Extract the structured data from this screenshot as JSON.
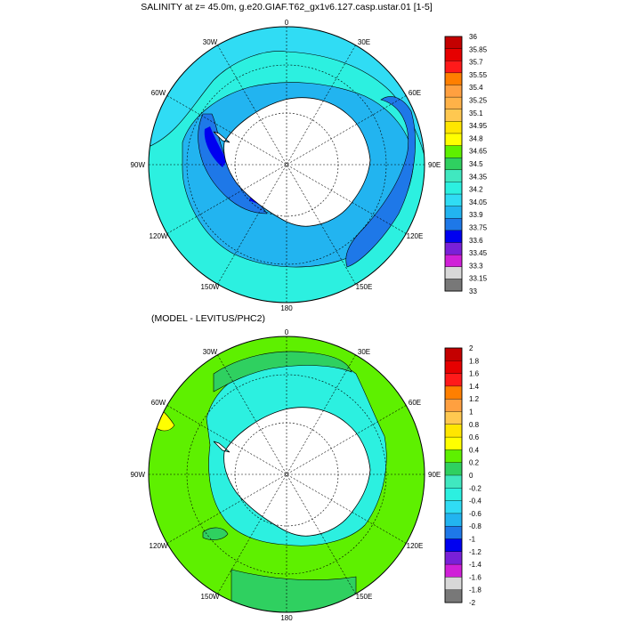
{
  "panels": [
    {
      "title": "SALINITY at z=  45.0m, g.e20.GIAF.T62_gx1v6.127.casp.ustar.01 [1-5]",
      "longitude_labels": {
        "top": "0",
        "bottom": "180",
        "left": "90W",
        "right": "90E",
        "upper_left_inner": "30W",
        "upper_right_inner": "30E",
        "upper_left_outer": "60W",
        "upper_right_outer": "60E",
        "lower_left_outer": "120W",
        "lower_right_outer": "120E",
        "lower_left_inner": "150W",
        "lower_right_inner": "150E"
      },
      "colorbar": {
        "labels": [
          "36",
          "35.85",
          "35.7",
          "35.55",
          "35.4",
          "35.25",
          "35.1",
          "34.95",
          "34.8",
          "34.65",
          "34.5",
          "34.35",
          "34.2",
          "34.05",
          "33.9",
          "33.75",
          "33.6",
          "33.45",
          "33.3",
          "33.15",
          "33"
        ],
        "colors": [
          "#c40000",
          "#e60000",
          "#ff1a1a",
          "#ff7f00",
          "#ffa040",
          "#ffb248",
          "#ffc850",
          "#ffe600",
          "#ffff00",
          "#5ef000",
          "#2fd060",
          "#40e8c0",
          "#2cf0e0",
          "#30dcf4",
          "#22b4f0",
          "#1e78e8",
          "#0000f0",
          "#7a20d8",
          "#d020d8",
          "#d8d8d8",
          "#787878"
        ]
      }
    },
    {
      "title": "(MODEL - LEVITUS/PHC2)",
      "longitude_labels": {
        "top": "0",
        "bottom": "180",
        "left": "90W",
        "right": "90E",
        "upper_left_inner": "30W",
        "upper_right_inner": "30E",
        "upper_left_outer": "60W",
        "upper_right_outer": "60E",
        "lower_left_outer": "120W",
        "lower_right_outer": "120E",
        "lower_left_inner": "150W",
        "lower_right_inner": "150E"
      },
      "colorbar": {
        "labels": [
          "2",
          "1.8",
          "1.6",
          "1.4",
          "1.2",
          "1",
          "0.8",
          "0.6",
          "0.4",
          "0.2",
          "0",
          "-0.2",
          "-0.4",
          "-0.6",
          "-0.8",
          "-1",
          "-1.2",
          "-1.4",
          "-1.6",
          "-1.8",
          "-2"
        ],
        "colors": [
          "#c40000",
          "#e60000",
          "#ff1a1a",
          "#ff7f00",
          "#ffa040",
          "#ffc850",
          "#ffe600",
          "#ffff00",
          "#5ef000",
          "#2fd060",
          "#40e8c0",
          "#2cf0e0",
          "#30dcf4",
          "#22b4f0",
          "#1e78e8",
          "#0000f0",
          "#7a20d8",
          "#d020d8",
          "#d8d8d8",
          "#787878"
        ]
      }
    }
  ],
  "field_colors": {
    "salinity_outer": "#30dcf4",
    "salinity_ring": "#22b4f0",
    "salinity_deep": "#1e78e8",
    "salinity_min": "#0000f0",
    "salinity_band": "#2cf0e0",
    "diff_base": "#5ef000",
    "diff_alt": "#2fd060",
    "diff_inner": "#2cf0e0",
    "diff_warm": "#ffff00",
    "land": "#ffffff"
  }
}
